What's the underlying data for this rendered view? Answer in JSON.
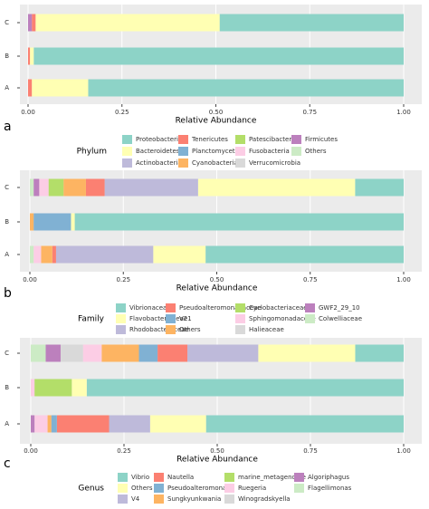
{
  "chart_data": [
    {
      "type": "bar",
      "orientation": "horizontal",
      "stacked": true,
      "panel_label": "a",
      "xlabel": "Relative Abundance",
      "legend_title": "Phylum",
      "categories": [
        "A",
        "B",
        "C"
      ],
      "xlim": [
        0,
        1
      ],
      "xticks": [
        {
          "value": 0,
          "label": "0.00"
        },
        {
          "value": 0.25,
          "label": "0.25"
        },
        {
          "value": 0.5,
          "label": "0.50"
        },
        {
          "value": 0.75,
          "label": "0.75"
        },
        {
          "value": 1,
          "label": "1.00"
        }
      ],
      "grid": true,
      "series": [
        {
          "name": "Proteobacteria",
          "color": "#8dd3c7",
          "values": [
            0.84,
            0.985,
            0.49
          ]
        },
        {
          "name": "Bacteroidetes",
          "color": "#ffffb3",
          "values": [
            0.15,
            0.01,
            0.49
          ]
        },
        {
          "name": "Actinobacteria",
          "color": "#bebada",
          "values": [
            0,
            0,
            0
          ]
        },
        {
          "name": "Tenericutes",
          "color": "#fb8072",
          "values": [
            0.01,
            0.005,
            0.01
          ]
        },
        {
          "name": "Planctomycetes",
          "color": "#80b1d3",
          "values": [
            0,
            0,
            0
          ]
        },
        {
          "name": "Cyanobacteria",
          "color": "#fdb462",
          "values": [
            0,
            0,
            0
          ]
        },
        {
          "name": "Patescibacteria",
          "color": "#b3de69",
          "values": [
            0,
            0,
            0
          ]
        },
        {
          "name": "Fusobacteria",
          "color": "#fccde5",
          "values": [
            0,
            0,
            0
          ]
        },
        {
          "name": "Verrucomicrobia",
          "color": "#d9d9d9",
          "values": [
            0,
            0,
            0
          ]
        },
        {
          "name": "Firmicutes",
          "color": "#bc80bd",
          "values": [
            0,
            0,
            0.01
          ]
        },
        {
          "name": "Others",
          "color": "#ccebc5",
          "values": [
            0,
            0,
            0
          ]
        }
      ]
    },
    {
      "type": "bar",
      "orientation": "horizontal",
      "stacked": true,
      "panel_label": "b",
      "xlabel": "Relative Abundance",
      "legend_title": "Family",
      "categories": [
        "A",
        "B",
        "C"
      ],
      "xlim": [
        0,
        1
      ],
      "xticks": [
        {
          "value": 0,
          "label": "0.00"
        },
        {
          "value": 0.25,
          "label": "0.25"
        },
        {
          "value": 0.5,
          "label": "0.50"
        },
        {
          "value": 0.75,
          "label": "0.75"
        },
        {
          "value": 1,
          "label": "1.00"
        }
      ],
      "grid": true,
      "series": [
        {
          "name": "Vibrionaceae",
          "color": "#8dd3c7",
          "values": [
            0.53,
            0.88,
            0.13
          ]
        },
        {
          "name": "Flavobacteriaceae",
          "color": "#ffffb3",
          "values": [
            0.14,
            0.01,
            0.42
          ]
        },
        {
          "name": "Rhodobacteraceae",
          "color": "#bebada",
          "values": [
            0.26,
            0,
            0.25
          ]
        },
        {
          "name": "Pseudoalteromonadaceae",
          "color": "#fb8072",
          "values": [
            0.01,
            0,
            0.05
          ]
        },
        {
          "name": "V21",
          "color": "#80b1d3",
          "values": [
            0,
            0.1,
            0
          ]
        },
        {
          "name": "Others",
          "color": "#fdb462",
          "values": [
            0.03,
            0.01,
            0.06
          ]
        },
        {
          "name": "Cyclobacteriaceae",
          "color": "#b3de69",
          "values": [
            0,
            0,
            0.04
          ]
        },
        {
          "name": "Sphingomonadaceae",
          "color": "#fccde5",
          "values": [
            0.02,
            0,
            0.025
          ]
        },
        {
          "name": "Halieaceae",
          "color": "#d9d9d9",
          "values": [
            0,
            0,
            0
          ]
        },
        {
          "name": "GWF2_29_10",
          "color": "#bc80bd",
          "values": [
            0,
            0,
            0.015
          ]
        },
        {
          "name": "Colwelliaceae",
          "color": "#ccebc5",
          "values": [
            0.01,
            0,
            0.01
          ]
        }
      ]
    },
    {
      "type": "bar",
      "orientation": "horizontal",
      "stacked": true,
      "panel_label": "c",
      "xlabel": "Relative Abundance",
      "legend_title": "Genus",
      "categories": [
        "A",
        "B",
        "C"
      ],
      "xlim": [
        0,
        1
      ],
      "xticks": [
        {
          "value": 0,
          "label": "0.00"
        },
        {
          "value": 0.25,
          "label": "0.25"
        },
        {
          "value": 0.5,
          "label": "0.50"
        },
        {
          "value": 0.75,
          "label": "0.75"
        },
        {
          "value": 1,
          "label": "1.00"
        }
      ],
      "grid": true,
      "series": [
        {
          "name": "Vibrio",
          "color": "#8dd3c7",
          "values": [
            0.53,
            0.85,
            0.13
          ]
        },
        {
          "name": "Others",
          "color": "#ffffb3",
          "values": [
            0.15,
            0.04,
            0.26
          ]
        },
        {
          "name": "V4",
          "color": "#bebada",
          "values": [
            0.11,
            0,
            0.19
          ]
        },
        {
          "name": "Nautella",
          "color": "#fb8072",
          "values": [
            0.14,
            0,
            0.08
          ]
        },
        {
          "name": "Pseudoalteromonas",
          "color": "#80b1d3",
          "values": [
            0.015,
            0,
            0.05
          ]
        },
        {
          "name": "Sungkyunkwania",
          "color": "#fdb462",
          "values": [
            0.01,
            0,
            0.1
          ]
        },
        {
          "name": "marine_metagenome",
          "color": "#b3de69",
          "values": [
            0,
            0.1,
            0
          ]
        },
        {
          "name": "Ruegeria",
          "color": "#fccde5",
          "values": [
            0.035,
            0.01,
            0.05
          ]
        },
        {
          "name": "Winogradskyella",
          "color": "#d9d9d9",
          "values": [
            0,
            0,
            0.06
          ]
        },
        {
          "name": "Algoriphagus",
          "color": "#bc80bd",
          "values": [
            0.01,
            0,
            0.04
          ]
        },
        {
          "name": "Flagellimonas",
          "color": "#ccebc5",
          "values": [
            0,
            0,
            0.04
          ]
        }
      ]
    }
  ]
}
